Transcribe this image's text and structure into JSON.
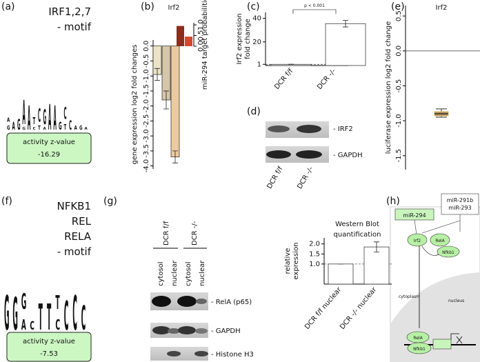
{
  "panel_labels": [
    "(a)",
    "(b)",
    "(c)",
    "(d)",
    "(e)",
    "(f)",
    "(g)",
    "(h)"
  ],
  "logo_colors": {
    "A": "#4fb83a",
    "C": "#1f4fb4",
    "G": "#f5a623",
    "T": "#d62418"
  },
  "motifs": [
    {
      "title_lines": [
        "IRF1,2,7",
        "- motif"
      ],
      "logo": [
        [
          {
            "letter": "G",
            "height": 0.15
          },
          {
            "letter": "A",
            "height": 0.15
          }
        ],
        [
          {
            "letter": "A",
            "height": 0.3
          }
        ],
        [
          {
            "letter": "G",
            "height": 0.4
          }
        ],
        [
          {
            "letter": "G",
            "height": 0.1
          },
          {
            "letter": "A",
            "height": 0.9
          }
        ],
        [
          {
            "letter": "A",
            "height": 0.9
          }
        ],
        [
          {
            "letter": "C",
            "height": 0.1
          },
          {
            "letter": "T",
            "height": 0.25
          }
        ],
        [
          {
            "letter": "T",
            "height": 0.15
          },
          {
            "letter": "C",
            "height": 0.5
          }
        ],
        [
          {
            "letter": "A",
            "height": 0.1
          },
          {
            "letter": "G",
            "height": 0.55
          }
        ],
        [
          {
            "letter": "A",
            "height": 0.95
          }
        ],
        [
          {
            "letter": "A",
            "height": 0.9
          }
        ],
        [
          {
            "letter": "G",
            "height": 0.3
          }
        ],
        [
          {
            "letter": "T",
            "height": 0.2
          },
          {
            "letter": "C",
            "height": 0.45
          }
        ],
        [
          {
            "letter": "C",
            "height": 0.35
          }
        ],
        [
          {
            "letter": "A",
            "height": 0.15
          }
        ],
        [
          {
            "letter": "G",
            "height": 0.15
          }
        ],
        [
          {
            "letter": "A",
            "height": 0.1
          }
        ]
      ],
      "activity_label": "activity z-value",
      "activity_value": "-16.29"
    },
    {
      "title_lines": [
        "NFKB1",
        "REL",
        "RELA",
        "- motif"
      ],
      "logo": [
        [
          {
            "letter": "G",
            "height": 1.0
          }
        ],
        [
          {
            "letter": "G",
            "height": 0.95
          }
        ],
        [
          {
            "letter": "A",
            "height": 0.3
          },
          {
            "letter": "G",
            "height": 0.45
          }
        ],
        [
          {
            "letter": "C",
            "height": 0.25
          }
        ],
        [
          {
            "letter": "T",
            "height": 0.75
          }
        ],
        [
          {
            "letter": "T",
            "height": 0.75
          }
        ],
        [
          {
            "letter": "C",
            "height": 0.3
          },
          {
            "letter": "T",
            "height": 0.4
          }
        ],
        [
          {
            "letter": "C",
            "height": 0.85
          }
        ],
        [
          {
            "letter": "C",
            "height": 1.0
          }
        ],
        [
          {
            "letter": "C",
            "height": 0.7
          }
        ]
      ],
      "activity_label": "activity z-value",
      "activity_value": "-7.53"
    }
  ],
  "chart_data": [
    {
      "type": "bar",
      "title": "Irf2",
      "y_label": [
        "gene expression log2 fold changes"
      ],
      "y2_label": [
        "miR-294 target probabilities"
      ],
      "ylim": [
        -4.1,
        0.2
      ],
      "yticks": [
        {
          "value": 0,
          "label": "0.0"
        },
        -0.5,
        {
          "value": -1,
          "label": "-1.0"
        },
        -1.5,
        {
          "value": -2,
          "label": "-2.0"
        },
        -2.5,
        {
          "value": -3,
          "label": "-3.0"
        },
        -3.5,
        {
          "value": -4,
          "label": "-4.0"
        }
      ],
      "y2lim": [
        0,
        1.1
      ],
      "y2ticks": [
        {
          "value": 0,
          "label": "0.0"
        },
        0.5,
        {
          "value": 1,
          "label": "1.0"
        }
      ],
      "series": [
        {
          "values": [
            -0.95,
            -1.8,
            -3.7
          ],
          "errors": [
            0.2,
            0.3,
            0.2
          ],
          "colors": [
            "#ece3c4",
            "#d6c6aa",
            "#eccaa0"
          ]
        },
        {
          "axis": "y2",
          "values": [
            0.95,
            0.45
          ],
          "colors": [
            "#8c2d1e",
            "#d24a2c"
          ]
        }
      ]
    },
    {
      "type": "bar",
      "y_label": [
        "Irf2 expression",
        "fold change"
      ],
      "categories": [
        "DCR f/f",
        "DCR -/-"
      ],
      "ylim": [
        0,
        45
      ],
      "yticks": [
        1,
        20,
        40
      ],
      "hline": 1,
      "annotation": "p < 0.001",
      "series": [
        {
          "values": [
            1,
            35.5
          ],
          "errors": [
            0.1,
            2.8
          ],
          "color": "#ffffff"
        }
      ]
    },
    {
      "type": "box",
      "title": "Irf2",
      "y_label": [
        "luciferase expression log2 fold change"
      ],
      "ylim": [
        -1.7,
        0.65
      ],
      "yticks": [
        0.5,
        {
          "value": 0,
          "label": "0.0"
        },
        -0.5,
        {
          "value": -1,
          "label": "-1.0"
        },
        -1.5
      ],
      "hline": 0,
      "boxes": [
        {
          "min": -0.95,
          "q1": -0.93,
          "median": -0.9,
          "q3": -0.87,
          "max": -0.83,
          "color": "#b08d5e"
        }
      ]
    },
    {
      "type": "bar",
      "title": [
        "Western Blot",
        "quantification"
      ],
      "y_label": [
        "relative",
        "expression"
      ],
      "categories": [
        "DCR f/f nuclear",
        "DCR -/- nuclear"
      ],
      "ylim": [
        0,
        2.3
      ],
      "yticks": [
        {
          "value": 1,
          "label": "1.0"
        },
        1.5,
        {
          "value": 2,
          "label": "2.0"
        }
      ],
      "hline": 1,
      "series": [
        {
          "values": [
            1.0,
            1.85
          ],
          "errors": [
            0,
            0.25
          ],
          "color": "#ffffff"
        }
      ]
    }
  ],
  "blot_d": {
    "bands": [
      "- IRF2",
      "- GAPDH"
    ],
    "lanes": [
      "DCR f/f",
      "DCR -/-"
    ]
  },
  "blot_g": {
    "conditions": [
      "DCR f/f",
      "DCR -/-"
    ],
    "fractions": [
      "cytosol",
      "nuclear",
      "cytosol",
      "nuclear"
    ],
    "bands": [
      "- RelA (p65)",
      "- GAPDH",
      "- Histone H3"
    ]
  },
  "diagram": {
    "mirna": "miR-294",
    "mirna_box": [
      "miR-291b",
      "miR-293"
    ],
    "proteins": [
      "Irf2",
      "RelA",
      "Nfkb1"
    ],
    "nuclear_proteins": [
      "RelA",
      "Nfkb1"
    ],
    "compartments": [
      "cytoplasm",
      "nucleus"
    ]
  }
}
